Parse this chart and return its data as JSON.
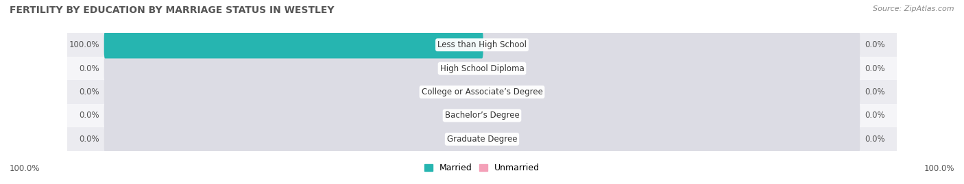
{
  "title": "FERTILITY BY EDUCATION BY MARRIAGE STATUS IN WESTLEY",
  "source": "Source: ZipAtlas.com",
  "categories": [
    "Less than High School",
    "High School Diploma",
    "College or Associate’s Degree",
    "Bachelor’s Degree",
    "Graduate Degree"
  ],
  "married_values": [
    100.0,
    0.0,
    0.0,
    0.0,
    0.0
  ],
  "unmarried_values": [
    0.0,
    0.0,
    0.0,
    0.0,
    0.0
  ],
  "married_color": "#26b5b0",
  "unmarried_color": "#f4a0b8",
  "bar_bg_color": "#dcdce4",
  "row_bg_even": "#ebebf0",
  "row_bg_odd": "#f5f5f8",
  "title_fontsize": 10,
  "source_fontsize": 8,
  "label_fontsize": 8.5,
  "cat_fontsize": 8.5,
  "legend_fontsize": 9,
  "axis_label_fontsize": 8.5,
  "left_axis_label": "100.0%",
  "right_axis_label": "100.0%",
  "background_color": "#ffffff"
}
